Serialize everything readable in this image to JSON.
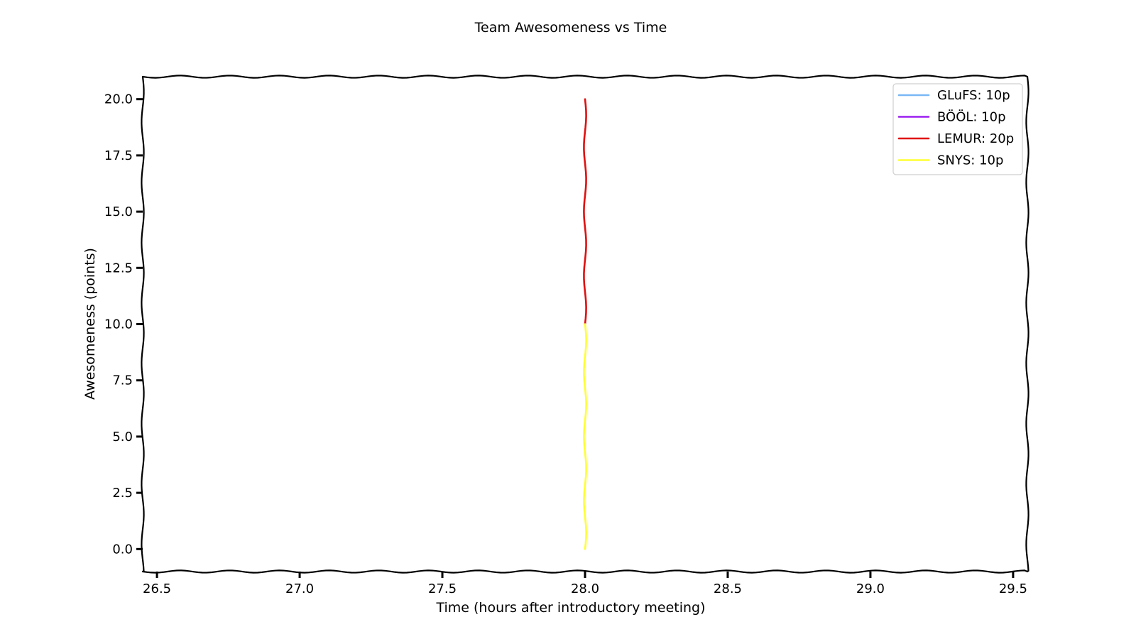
{
  "chart_data": {
    "type": "line",
    "title": "Team Awesomeness vs Time",
    "xlabel": "Time (hours after introductory meeting)",
    "ylabel": "Awesomeness (points)",
    "xlim": [
      26.45,
      29.55
    ],
    "ylim": [
      -1.0,
      21.0
    ],
    "xticks": [
      26.5,
      27.0,
      27.5,
      28.0,
      28.5,
      29.0,
      29.5
    ],
    "xtick_labels": [
      "26.5",
      "27.0",
      "27.5",
      "28.0",
      "28.5",
      "29.0",
      "29.5"
    ],
    "yticks": [
      0.0,
      2.5,
      5.0,
      7.5,
      10.0,
      12.5,
      15.0,
      17.5,
      20.0
    ],
    "ytick_labels": [
      "0.0",
      "2.5",
      "5.0",
      "7.5",
      "10.0",
      "12.5",
      "15.0",
      "17.5",
      "20.0"
    ],
    "grid": false,
    "legend_position": "top-right",
    "series": [
      {
        "name": "GLuFS: 10p",
        "color": "#7ab8f5",
        "points": []
      },
      {
        "name": "BÖÖL: 10p",
        "color": "#9b1ff0",
        "points": []
      },
      {
        "name": "LEMUR: 20p",
        "color": "#e01010",
        "points": [
          [
            28.0,
            10.0
          ],
          [
            28.0,
            20.0
          ]
        ]
      },
      {
        "name": "SNYS: 10p",
        "color": "#ffff33",
        "points": [
          [
            28.0,
            0.0
          ],
          [
            28.0,
            10.0
          ]
        ]
      }
    ]
  }
}
